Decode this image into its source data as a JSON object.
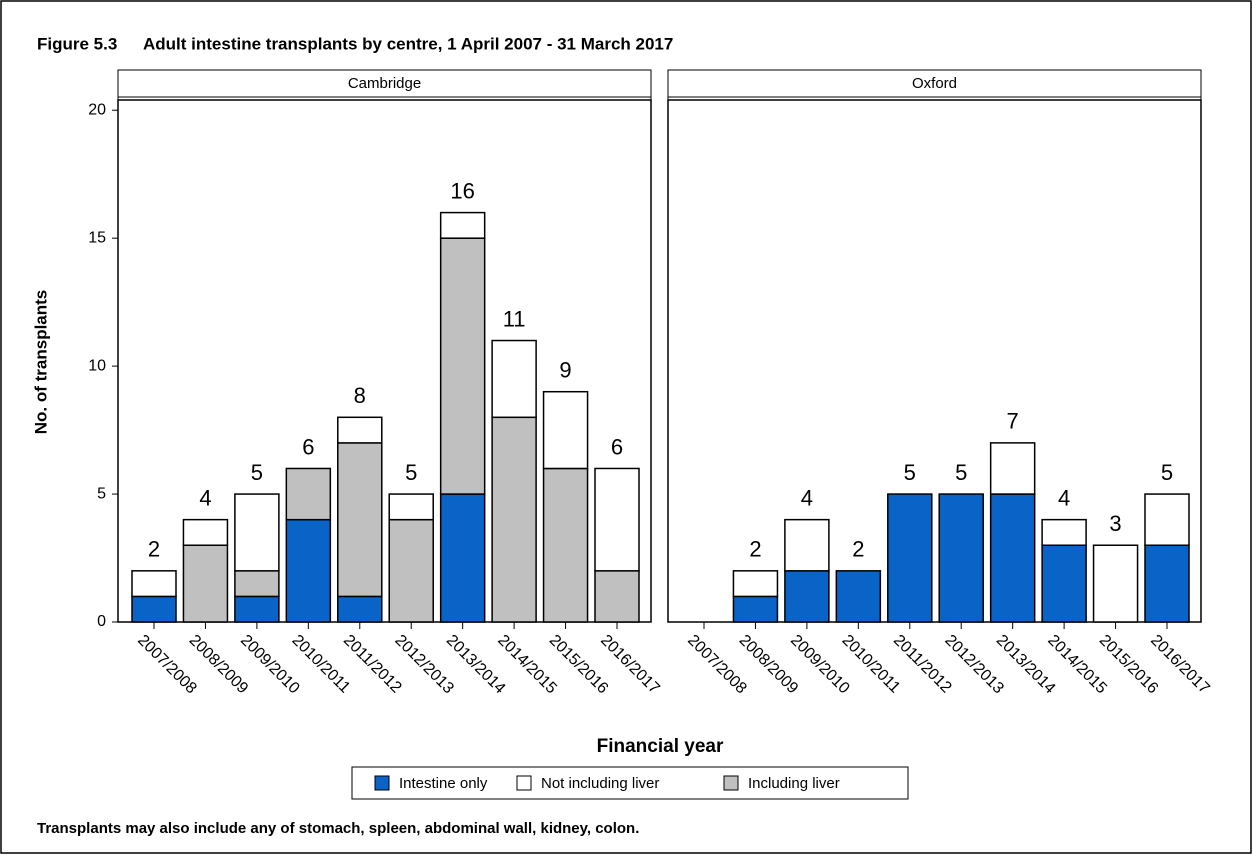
{
  "figure_number": "Figure 5.3",
  "title": "Adult intestine transplants by centre, 1 April 2007 - 31 March 2017",
  "ylabel": "No. of transplants",
  "xlabel": "Financial year",
  "footnote": "Transplants may also include any of stomach, spleen, abdominal wall, kidney, colon.",
  "chart_data": [
    {
      "type": "bar",
      "stacked": true,
      "title": "Cambridge",
      "categories": [
        "2007/2008",
        "2008/2009",
        "2009/2010",
        "2010/2011",
        "2011/2012",
        "2012/2013",
        "2013/2014",
        "2014/2015",
        "2015/2016",
        "2016/2017"
      ],
      "ylim": [
        0,
        20.4
      ],
      "yticks": [
        0,
        5,
        10,
        15,
        20
      ],
      "series": [
        {
          "name": "Intestine only",
          "color": "#0a64c8",
          "values": [
            1,
            0,
            1,
            4,
            1,
            0,
            5,
            0,
            0,
            0
          ]
        },
        {
          "name": "Not including liver",
          "color": "#ffffff",
          "values": [
            1,
            1,
            3,
            0,
            1,
            1,
            1,
            3,
            3,
            4
          ]
        },
        {
          "name": "Including liver",
          "color": "#c0c0c0",
          "values": [
            0,
            3,
            1,
            2,
            6,
            4,
            10,
            8,
            6,
            2
          ]
        }
      ],
      "totals": [
        2,
        4,
        5,
        6,
        8,
        5,
        16,
        11,
        9,
        6
      ]
    },
    {
      "type": "bar",
      "stacked": true,
      "title": "Oxford",
      "categories": [
        "2007/2008",
        "2008/2009",
        "2009/2010",
        "2010/2011",
        "2011/2012",
        "2012/2013",
        "2013/2014",
        "2014/2015",
        "2015/2016",
        "2016/2017"
      ],
      "ylim": [
        0,
        20.4
      ],
      "series": [
        {
          "color": "#0a64c8",
          "values": [
            0,
            1,
            2,
            2,
            5,
            5,
            5,
            3,
            0,
            3
          ]
        },
        {
          "color": "#ffffff",
          "values": [
            0,
            1,
            2,
            0,
            0,
            0,
            2,
            1,
            3,
            2
          ]
        },
        {
          "color": "#c0c0c0",
          "values": [
            0,
            0,
            0,
            0,
            0,
            0,
            0,
            0,
            0,
            0
          ]
        }
      ],
      "totals": [
        null,
        2,
        4,
        2,
        5,
        5,
        7,
        4,
        3,
        5
      ]
    }
  ]
}
